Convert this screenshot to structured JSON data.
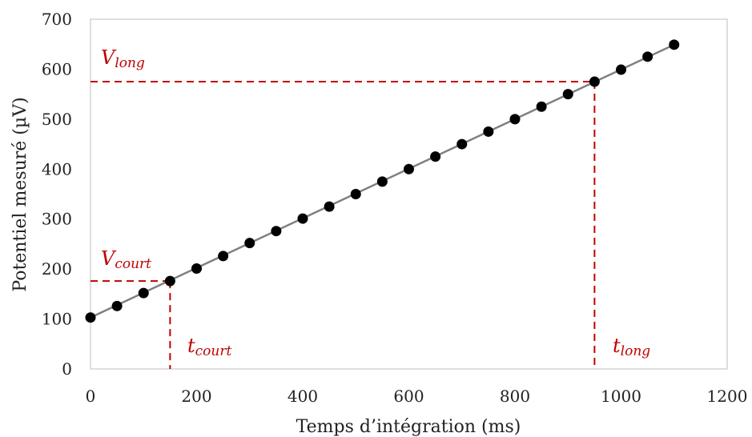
{
  "chart_data": {
    "type": "scatter",
    "title": "",
    "xlabel": "Temps d’intégration (ms)",
    "ylabel": "Potentiel mesuré (µV)",
    "xlim": [
      0,
      1200
    ],
    "ylim": [
      0,
      700
    ],
    "x_ticks": [
      0,
      200,
      400,
      600,
      800,
      1000,
      1200
    ],
    "y_ticks": [
      0,
      100,
      200,
      300,
      400,
      500,
      600,
      700
    ],
    "grid": false,
    "legend": "none",
    "series": [
      {
        "marker": "circle",
        "color": "#000000",
        "x": [
          0,
          50,
          100,
          150,
          200,
          250,
          300,
          350,
          400,
          450,
          500,
          550,
          600,
          650,
          700,
          750,
          800,
          850,
          900,
          950,
          1000,
          1050,
          1100
        ],
        "y": [
          103,
          126,
          152,
          176,
          201,
          226,
          252,
          276,
          301,
          325,
          350,
          375,
          400,
          425,
          450,
          475,
          500,
          525,
          550,
          575,
          599,
          625,
          649
        ]
      }
    ],
    "fit_line": {
      "color": "#808080",
      "x": [
        0,
        1100
      ],
      "y": [
        103,
        649
      ]
    },
    "reference_lines": {
      "color": "#c00000",
      "style": "dashed",
      "short": {
        "x": 150,
        "y": 176
      },
      "long": {
        "x": 950,
        "y": 575
      }
    },
    "annotations": [
      {
        "id": "v_long",
        "main": "V",
        "sub": "long",
        "color": "#c00000"
      },
      {
        "id": "v_court",
        "main": "V",
        "sub": "court",
        "color": "#c00000"
      },
      {
        "id": "t_court",
        "main": "t",
        "sub": "court",
        "color": "#c00000"
      },
      {
        "id": "t_long",
        "main": "t",
        "sub": "long",
        "color": "#c00000"
      }
    ]
  }
}
